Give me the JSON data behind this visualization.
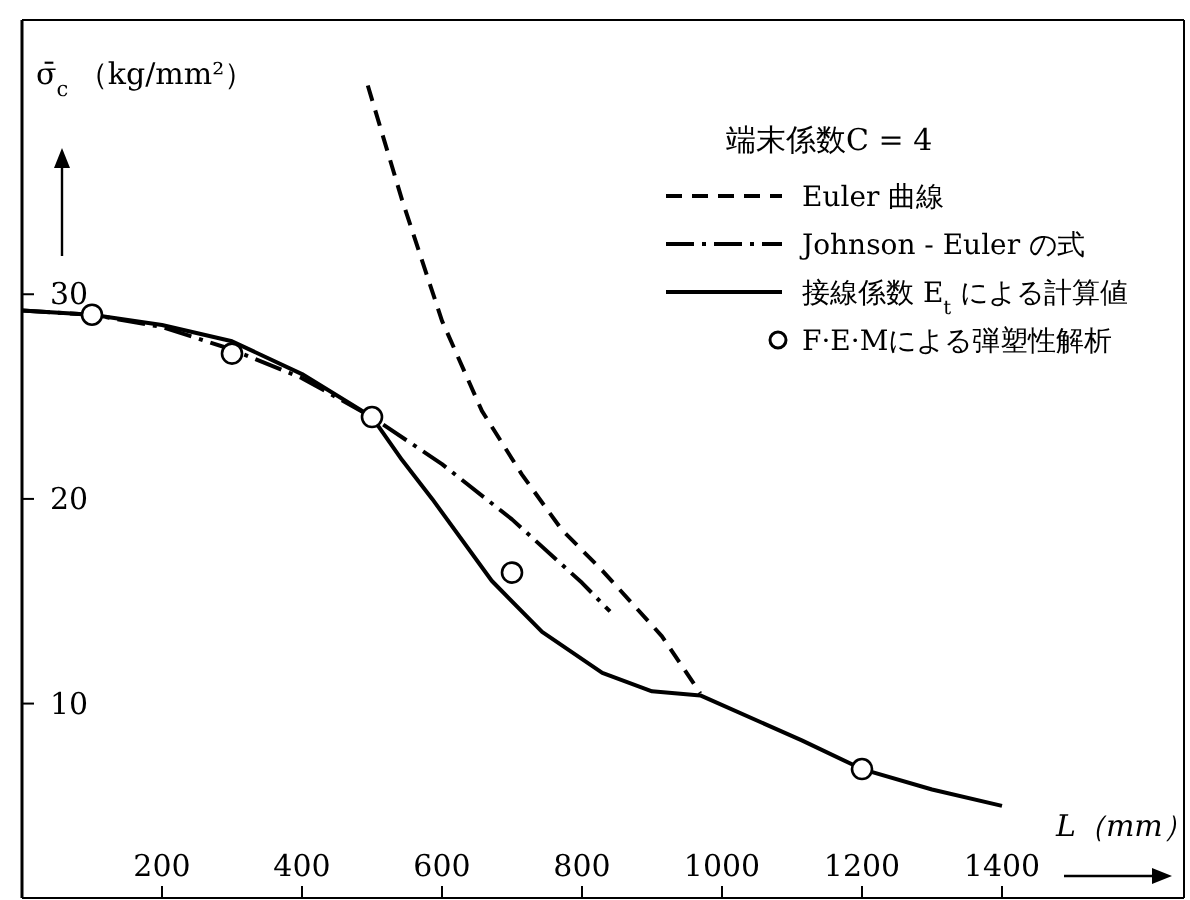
{
  "chart_data": {
    "type": "line",
    "legend_title": "端末係数C = 4",
    "ylabel": "σ̄$_{c}$ （kg/mm²）",
    "xlabel": "L（mm）",
    "xlim": [
      0,
      1660
    ],
    "ylim": [
      0.5,
      43.4
    ],
    "xticks": [
      200,
      400,
      600,
      800,
      1000,
      1200,
      1400
    ],
    "yticks": [
      10,
      20,
      30
    ],
    "legend": "top right",
    "grid": false,
    "series": [
      {
        "name": "Euler 曲線",
        "color": "#000000",
        "line_style": "dashed",
        "x": [
          494,
          543,
          600,
          657,
          714,
          771,
          829,
          914,
          969
        ],
        "values": [
          40.2,
          34.6,
          28.7,
          24.3,
          21.2,
          18.5,
          16.5,
          13.3,
          10.5
        ]
      },
      {
        "name": "Johnson - Euler の式",
        "color": "#000000",
        "line_style": "dashdot",
        "x": [
          0,
          100,
          200,
          300,
          400,
          500,
          600,
          700,
          800,
          840
        ],
        "values": [
          29.2,
          29.0,
          28.4,
          27.3,
          25.9,
          24.0,
          21.7,
          19.0,
          15.9,
          14.5
        ]
      },
      {
        "name": "接線係数 E$_{t}$ による計算値",
        "color": "#000000",
        "line_style": "solid",
        "x": [
          0,
          100,
          200,
          300,
          400,
          500,
          543,
          586,
          671,
          743,
          829,
          900,
          969,
          1114,
          1200,
          1300,
          1400
        ],
        "values": [
          29.2,
          29.0,
          28.5,
          27.7,
          26.1,
          24.0,
          21.9,
          20.0,
          16.0,
          13.5,
          11.5,
          10.6,
          10.4,
          8.2,
          6.8,
          5.8,
          5.0
        ]
      },
      {
        "name": "F·E·Mによる弾塑性解析",
        "color": "#000000",
        "type": "scatter",
        "marker": "circle",
        "x": [
          100,
          300,
          500,
          700,
          1200
        ],
        "values": [
          29.0,
          27.1,
          24.0,
          16.4,
          6.8
        ]
      }
    ]
  }
}
